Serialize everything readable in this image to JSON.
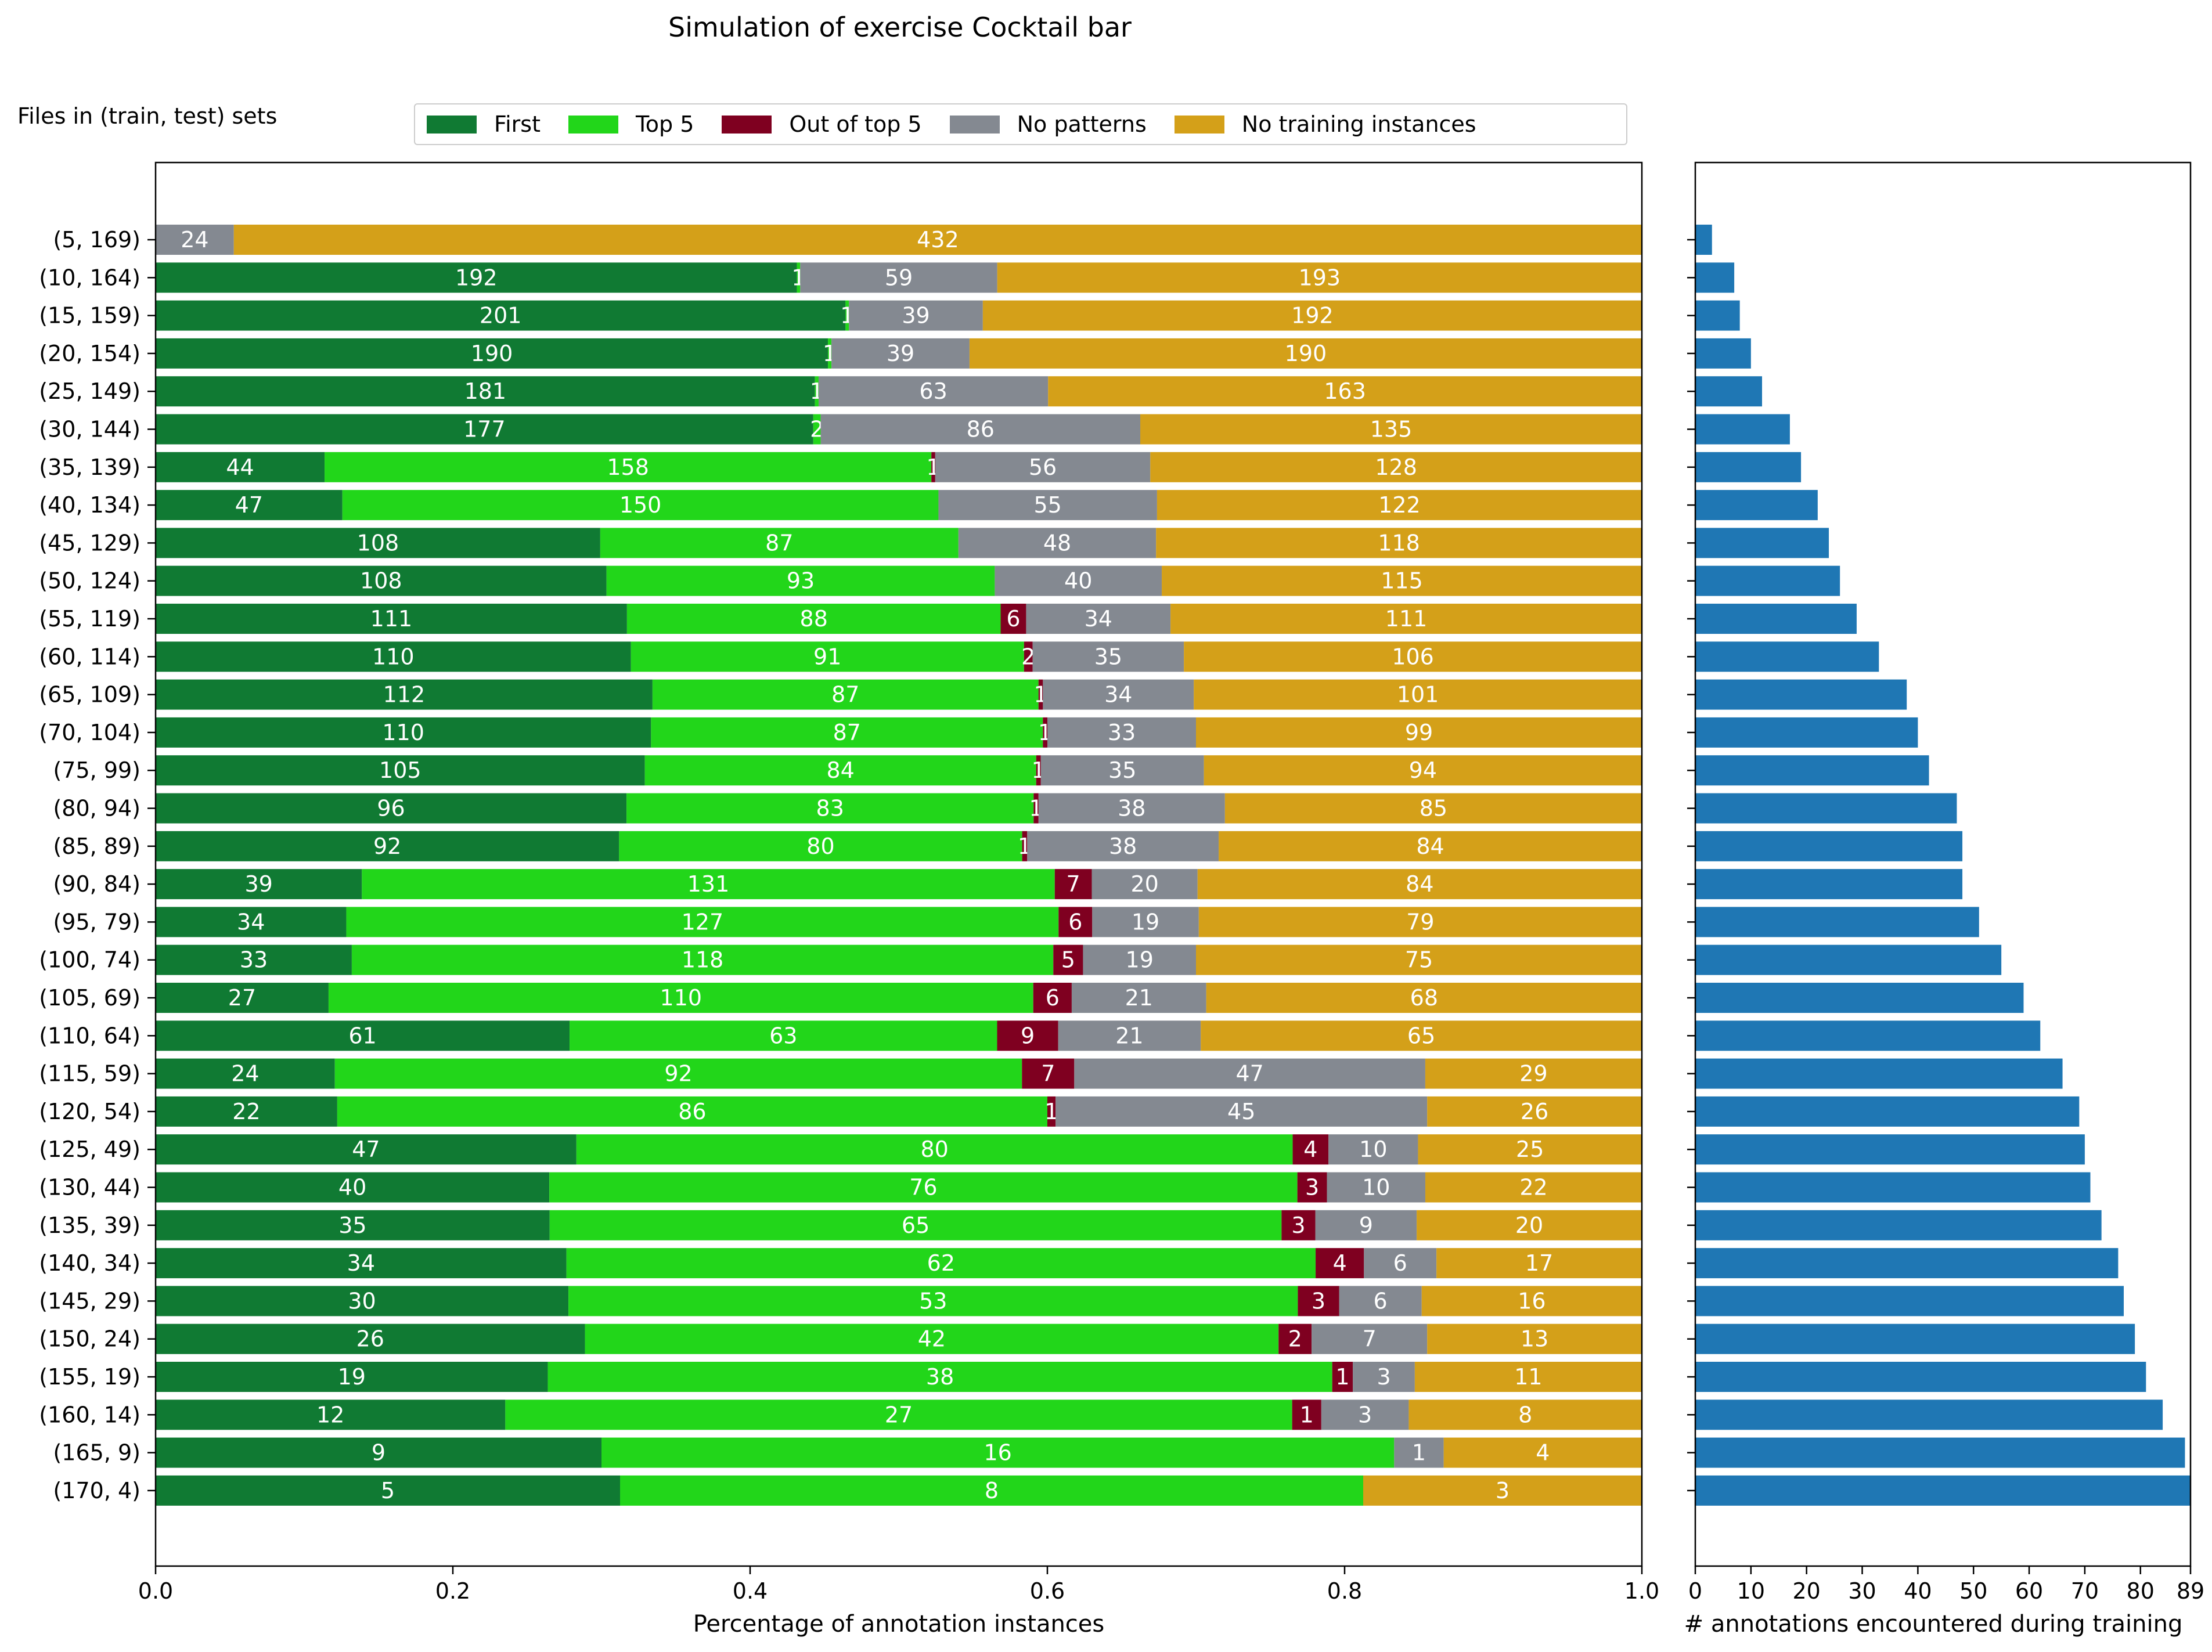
{
  "header": {
    "title": "Simulation of exercise Cocktail bar",
    "files_label": "Files in (train, test) sets"
  },
  "legend": {
    "items": [
      {
        "label": "First",
        "color": "#107a33"
      },
      {
        "label": "Top 5",
        "color": "#22d61a"
      },
      {
        "label": "Out of top 5",
        "color": "#7f0020"
      },
      {
        "label": "No patterns",
        "color": "#848991"
      },
      {
        "label": "No training instances",
        "color": "#d4a019"
      }
    ]
  },
  "chart_data": [
    {
      "type": "bar",
      "orientation": "horizontal",
      "stacked": true,
      "normalized": true,
      "xlabel": "Percentage of annotation instances",
      "xlim": [
        0,
        1
      ],
      "xticks": [
        "0.0",
        "0.2",
        "0.4",
        "0.6",
        "0.8",
        "1.0"
      ],
      "categories": [
        "(5, 169)",
        "(10, 164)",
        "(15, 159)",
        "(20, 154)",
        "(25, 149)",
        "(30, 144)",
        "(35, 139)",
        "(40, 134)",
        "(45, 129)",
        "(50, 124)",
        "(55, 119)",
        "(60, 114)",
        "(65, 109)",
        "(70, 104)",
        "(75, 99)",
        "(80, 94)",
        "(85, 89)",
        "(90, 84)",
        "(95, 79)",
        "(100, 74)",
        "(105, 69)",
        "(110, 64)",
        "(115, 59)",
        "(120, 54)",
        "(125, 49)",
        "(130, 44)",
        "(135, 39)",
        "(140, 34)",
        "(145, 29)",
        "(150, 24)",
        "(155, 19)",
        "(160, 14)",
        "(165, 9)",
        "(170, 4)"
      ],
      "series": [
        {
          "name": "First",
          "values": [
            0,
            192,
            201,
            190,
            181,
            177,
            44,
            47,
            108,
            108,
            111,
            110,
            112,
            110,
            105,
            96,
            92,
            39,
            34,
            33,
            27,
            61,
            24,
            22,
            47,
            40,
            35,
            34,
            30,
            26,
            19,
            12,
            9,
            5
          ]
        },
        {
          "name": "Top 5",
          "values": [
            0,
            1,
            1,
            1,
            1,
            2,
            158,
            150,
            87,
            93,
            88,
            91,
            87,
            87,
            84,
            83,
            80,
            131,
            127,
            118,
            110,
            63,
            92,
            86,
            80,
            76,
            65,
            62,
            53,
            42,
            38,
            27,
            16,
            8
          ]
        },
        {
          "name": "Out of top 5",
          "values": [
            0,
            0,
            0,
            0,
            0,
            0,
            1,
            0,
            0,
            0,
            6,
            2,
            1,
            1,
            1,
            1,
            1,
            7,
            6,
            5,
            6,
            9,
            7,
            1,
            4,
            3,
            3,
            4,
            3,
            2,
            1,
            1,
            0,
            0
          ]
        },
        {
          "name": "No patterns",
          "values": [
            24,
            59,
            39,
            39,
            63,
            86,
            56,
            55,
            48,
            40,
            34,
            35,
            34,
            33,
            35,
            38,
            38,
            20,
            19,
            19,
            21,
            21,
            47,
            45,
            10,
            10,
            9,
            6,
            6,
            7,
            3,
            3,
            1,
            0
          ]
        },
        {
          "name": "No training instances",
          "values": [
            432,
            193,
            192,
            190,
            163,
            135,
            128,
            122,
            118,
            115,
            111,
            106,
            101,
            99,
            94,
            85,
            84,
            84,
            79,
            75,
            68,
            65,
            29,
            26,
            25,
            22,
            20,
            17,
            16,
            13,
            11,
            8,
            4,
            3
          ]
        }
      ]
    },
    {
      "type": "bar",
      "orientation": "horizontal",
      "xlabel": "# annotations encountered during training",
      "xlim": [
        0,
        89
      ],
      "xticks": [
        "0",
        "10",
        "20",
        "30",
        "40",
        "50",
        "60",
        "70",
        "80",
        "89"
      ],
      "color": "#1f77b4",
      "values": [
        3,
        7,
        8,
        10,
        12,
        17,
        19,
        22,
        24,
        26,
        29,
        33,
        38,
        40,
        42,
        47,
        48,
        48,
        51,
        55,
        59,
        62,
        66,
        69,
        70,
        71,
        73,
        76,
        77,
        79,
        81,
        84,
        88,
        89
      ]
    }
  ]
}
